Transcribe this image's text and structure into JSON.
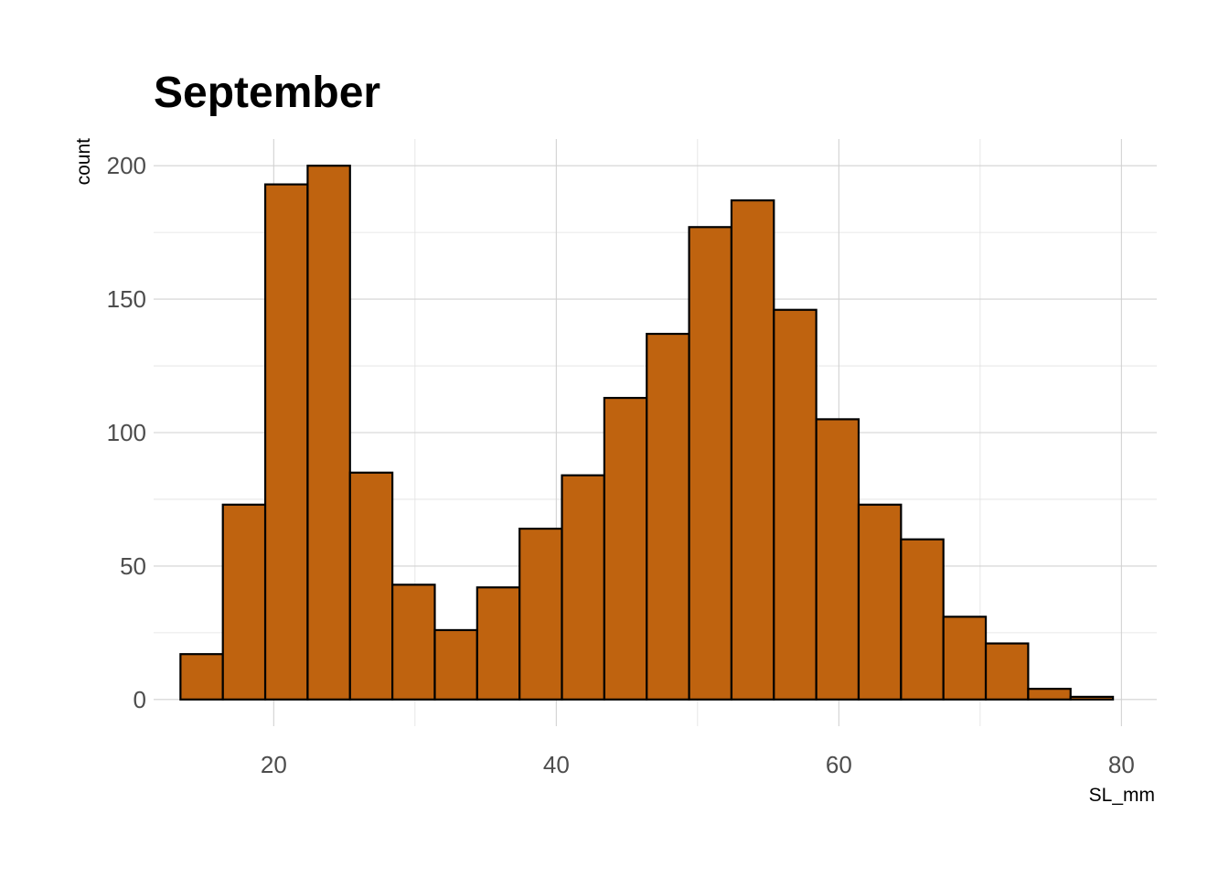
{
  "chart_data": {
    "type": "bar",
    "title": "September",
    "xlabel": "SL_mm",
    "ylabel": "count",
    "bar_fill": "#BF630F",
    "bar_outline": "#000000",
    "grid": true,
    "xlim": [
      11.5,
      82.5
    ],
    "ylim": [
      -10,
      210
    ],
    "x_ticks": [
      20,
      40,
      60,
      80
    ],
    "y_ticks": [
      0,
      50,
      100,
      150,
      200
    ],
    "x_tick_labels": [
      "20",
      "40",
      "60",
      "80"
    ],
    "y_tick_labels": [
      "0",
      "50",
      "100",
      "150",
      "200"
    ],
    "bin_edges": [
      13.4,
      16.4,
      19.4,
      22.4,
      25.4,
      28.4,
      31.4,
      34.4,
      37.4,
      40.4,
      43.4,
      46.4,
      49.4,
      52.4,
      55.4,
      58.4,
      61.4,
      64.4,
      67.4,
      70.4,
      73.4,
      76.4,
      79.4
    ],
    "values": [
      17,
      73,
      193,
      200,
      85,
      43,
      26,
      42,
      64,
      84,
      113,
      137,
      177,
      187,
      146,
      105,
      73,
      60,
      31,
      21,
      4,
      1
    ]
  }
}
